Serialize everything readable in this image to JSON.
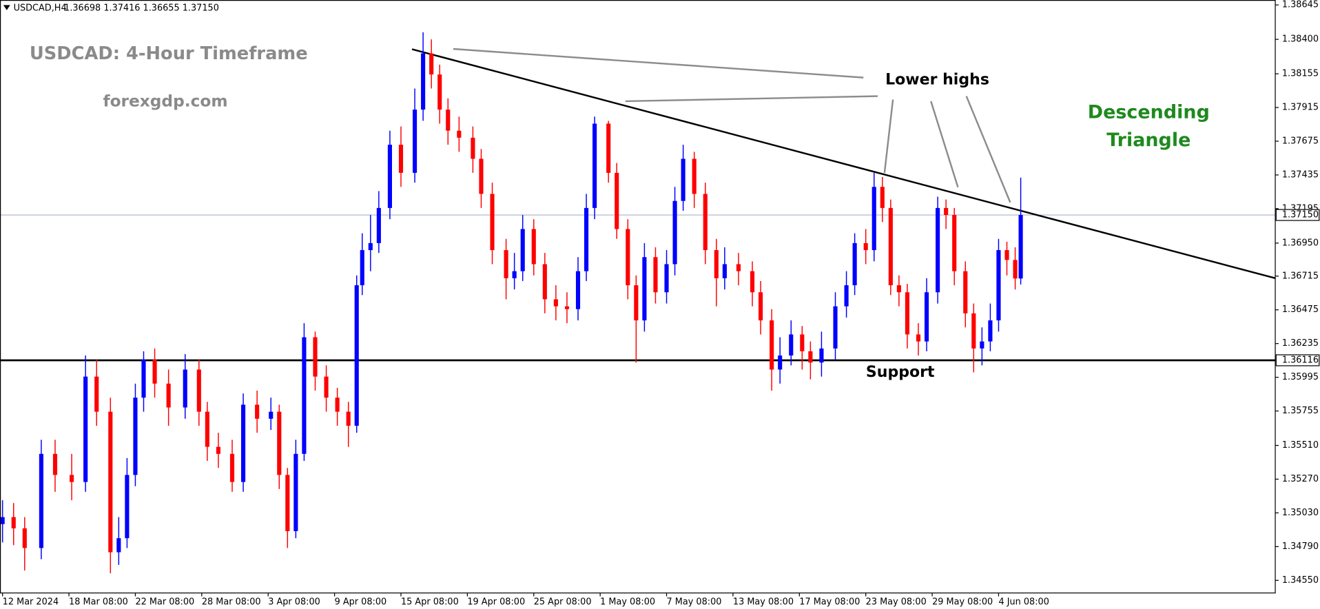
{
  "chart_data": {
    "type": "candlestick",
    "symbol": "USDCAD,H4",
    "quote": "1.36698 1.37416 1.36655 1.37150",
    "title": "USDCAD: 4-Hour Timeframe",
    "subtitle": "forexgdp.com",
    "annotations": {
      "lower_highs": "Lower highs",
      "support": "Support",
      "pattern": [
        "Descending",
        "Triangle"
      ]
    },
    "up_color": "#0000ff",
    "down_color": "#ff0000",
    "grid": false,
    "xlim": [
      0,
      460
    ],
    "ylim": [
      1.3446,
      1.3868
    ],
    "xticks": [
      {
        "value": 0,
        "label": "12 Mar 2024"
      },
      {
        "value": 24,
        "label": "18 Mar 08:00"
      },
      {
        "value": 48,
        "label": "22 Mar 08:00"
      },
      {
        "value": 72,
        "label": "28 Mar 08:00"
      },
      {
        "value": 96,
        "label": "3 Apr 08:00"
      },
      {
        "value": 120,
        "label": "9 Apr 08:00"
      },
      {
        "value": 144,
        "label": "15 Apr 08:00"
      },
      {
        "value": 168,
        "label": "19 Apr 08:00"
      },
      {
        "value": 192,
        "label": "25 Apr 08:00"
      },
      {
        "value": 216,
        "label": "1 May 08:00"
      },
      {
        "value": 240,
        "label": "7 May 08:00"
      },
      {
        "value": 264,
        "label": "13 May 08:00"
      },
      {
        "value": 288,
        "label": "17 May 08:00"
      },
      {
        "value": 312,
        "label": "23 May 08:00"
      },
      {
        "value": 336,
        "label": "29 May 08:00"
      },
      {
        "value": 360,
        "label": "4 Jun 08:00"
      }
    ],
    "yticks": [
      1.38645,
      {
        "value": 1.384,
        "label": "1.38400"
      },
      1.38155,
      1.37915,
      1.37675,
      1.37435,
      1.37195,
      {
        "value": 1.3695,
        "label": "1.36950"
      },
      1.36715,
      1.36475,
      1.36235,
      1.35995,
      1.35755,
      {
        "value": 1.3551,
        "label": "1.35510"
      },
      {
        "value": 1.3527,
        "label": "1.35270"
      },
      {
        "value": 1.3503,
        "label": "1.35030"
      },
      {
        "value": 1.3479,
        "label": "1.34790"
      },
      {
        "value": 1.3455,
        "label": "1.34550"
      }
    ],
    "support_level": {
      "value": 1.36116,
      "label": "1.36116"
    },
    "last_price": {
      "value": 1.3715,
      "label": "1.37150"
    },
    "trendline": {
      "x": [
        148,
        460
      ],
      "y": [
        1.3833,
        1.367
      ]
    },
    "x": [
      0,
      4,
      8,
      14,
      19,
      25,
      30,
      34,
      39,
      42,
      45,
      48,
      51,
      55,
      60,
      66,
      71,
      74,
      78,
      83,
      87,
      92,
      97,
      100,
      103,
      106,
      109,
      113,
      117,
      121,
      125,
      128,
      130,
      133,
      136,
      140,
      144,
      149,
      152,
      155,
      158,
      161,
      165,
      170,
      173,
      177,
      182,
      185,
      188,
      192,
      196,
      200,
      204,
      208,
      211,
      214,
      219,
      222,
      226,
      229,
      232,
      236,
      240,
      243,
      246,
      250,
      254,
      258,
      261,
      266,
      271,
      274,
      278,
      281,
      285,
      289,
      292,
      296,
      301,
      305,
      308,
      312,
      315,
      318,
      321,
      324,
      327,
      331,
      334,
      338,
      341,
      344,
      348,
      351,
      354,
      357,
      360,
      363,
      366,
      368
    ],
    "open": [
      1.3495,
      1.35,
      1.3492,
      1.3478,
      1.3545,
      1.353,
      1.3525,
      1.36,
      1.3575,
      1.3475,
      1.3485,
      1.353,
      1.3585,
      1.3612,
      1.3595,
      1.3578,
      1.3605,
      1.3575,
      1.355,
      1.3545,
      1.3525,
      1.358,
      1.357,
      1.3575,
      1.353,
      1.349,
      1.3545,
      1.3628,
      1.36,
      1.3585,
      1.3575,
      1.3565,
      1.3665,
      1.369,
      1.3695,
      1.372,
      1.3765,
      1.3745,
      1.379,
      1.383,
      1.3815,
      1.379,
      1.3775,
      1.377,
      1.3755,
      1.373,
      1.369,
      1.367,
      1.3675,
      1.3705,
      1.368,
      1.3655,
      1.365,
      1.3648,
      1.3675,
      1.372,
      1.378,
      1.3745,
      1.3705,
      1.3665,
      1.364,
      1.3685,
      1.366,
      1.368,
      1.3725,
      1.3755,
      1.373,
      1.369,
      1.367,
      1.368,
      1.3675,
      1.366,
      1.364,
      1.3605,
      1.3615,
      1.363,
      1.3618,
      1.361,
      1.362,
      1.365,
      1.3665,
      1.3695,
      1.369,
      1.3735,
      1.372,
      1.3665,
      1.366,
      1.363,
      1.3625,
      1.366,
      1.372,
      1.3715,
      1.3675,
      1.3645,
      1.362,
      1.3625,
      1.364,
      1.369,
      1.3683,
      1.36698
    ],
    "high": [
      1.3512,
      1.351,
      1.35,
      1.3555,
      1.3555,
      1.3545,
      1.3615,
      1.3612,
      1.3585,
      1.35,
      1.3542,
      1.3595,
      1.3618,
      1.362,
      1.3605,
      1.3616,
      1.3612,
      1.3582,
      1.356,
      1.3555,
      1.3588,
      1.359,
      1.3585,
      1.358,
      1.3535,
      1.3555,
      1.3638,
      1.3632,
      1.3608,
      1.3592,
      1.3582,
      1.3672,
      1.3702,
      1.3715,
      1.3732,
      1.3775,
      1.3778,
      1.3805,
      1.3845,
      1.384,
      1.3822,
      1.3798,
      1.3785,
      1.3778,
      1.3762,
      1.3738,
      1.3698,
      1.3688,
      1.3715,
      1.3712,
      1.3688,
      1.3665,
      1.366,
      1.3685,
      1.373,
      1.3785,
      1.3782,
      1.3752,
      1.3712,
      1.3672,
      1.3695,
      1.3692,
      1.369,
      1.3735,
      1.3765,
      1.376,
      1.3738,
      1.3698,
      1.3692,
      1.3688,
      1.3682,
      1.3668,
      1.3648,
      1.3628,
      1.364,
      1.3636,
      1.3625,
      1.3632,
      1.366,
      1.3675,
      1.3702,
      1.3705,
      1.3745,
      1.3742,
      1.3726,
      1.3672,
      1.3666,
      1.3638,
      1.367,
      1.3728,
      1.3726,
      1.372,
      1.3682,
      1.3652,
      1.3635,
      1.3652,
      1.3698,
      1.3696,
      1.3692,
      1.37416
    ],
    "low": [
      1.3482,
      1.348,
      1.3462,
      1.347,
      1.3518,
      1.3512,
      1.3518,
      1.3565,
      1.346,
      1.3466,
      1.3478,
      1.3522,
      1.3575,
      1.3585,
      1.3565,
      1.357,
      1.3565,
      1.354,
      1.3535,
      1.3518,
      1.3518,
      1.356,
      1.3562,
      1.352,
      1.3478,
      1.3485,
      1.354,
      1.359,
      1.3575,
      1.3565,
      1.355,
      1.356,
      1.3658,
      1.3675,
      1.3688,
      1.3712,
      1.3735,
      1.3738,
      1.3782,
      1.3805,
      1.378,
      1.3765,
      1.376,
      1.3745,
      1.372,
      1.368,
      1.3655,
      1.3662,
      1.3668,
      1.3672,
      1.3645,
      1.364,
      1.3638,
      1.364,
      1.3668,
      1.3712,
      1.3738,
      1.3698,
      1.3655,
      1.361,
      1.3632,
      1.3652,
      1.3652,
      1.3672,
      1.3718,
      1.372,
      1.368,
      1.365,
      1.3662,
      1.3665,
      1.365,
      1.363,
      1.359,
      1.3595,
      1.3608,
      1.3605,
      1.3598,
      1.36,
      1.3612,
      1.3642,
      1.3658,
      1.368,
      1.3682,
      1.371,
      1.3658,
      1.365,
      1.362,
      1.3615,
      1.3618,
      1.3652,
      1.3705,
      1.3665,
      1.3635,
      1.3603,
      1.3608,
      1.3618,
      1.3632,
      1.3672,
      1.3662,
      1.36655
    ],
    "close": [
      1.35,
      1.3492,
      1.3478,
      1.3545,
      1.353,
      1.3525,
      1.36,
      1.3575,
      1.3475,
      1.3485,
      1.353,
      1.3585,
      1.3612,
      1.3595,
      1.3578,
      1.3605,
      1.3575,
      1.355,
      1.3545,
      1.3525,
      1.358,
      1.357,
      1.3575,
      1.353,
      1.349,
      1.3545,
      1.3628,
      1.36,
      1.3585,
      1.3575,
      1.3565,
      1.3665,
      1.369,
      1.3695,
      1.372,
      1.3765,
      1.3745,
      1.379,
      1.383,
      1.3815,
      1.379,
      1.3775,
      1.377,
      1.3755,
      1.373,
      1.369,
      1.367,
      1.3675,
      1.3705,
      1.368,
      1.3655,
      1.365,
      1.3648,
      1.3675,
      1.372,
      1.378,
      1.3745,
      1.3705,
      1.3665,
      1.364,
      1.3685,
      1.366,
      1.368,
      1.3725,
      1.3755,
      1.373,
      1.369,
      1.367,
      1.368,
      1.3675,
      1.366,
      1.364,
      1.3605,
      1.3615,
      1.363,
      1.3618,
      1.361,
      1.362,
      1.365,
      1.3665,
      1.3695,
      1.369,
      1.3735,
      1.372,
      1.3665,
      1.366,
      1.363,
      1.3625,
      1.366,
      1.372,
      1.3715,
      1.3675,
      1.3645,
      1.362,
      1.3625,
      1.364,
      1.369,
      1.3683,
      1.36698,
      1.3715
    ]
  }
}
